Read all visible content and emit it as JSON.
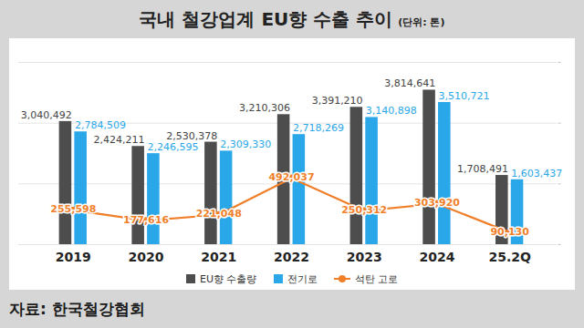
{
  "chart_data": {
    "type": "bar",
    "title": "국내 철강업계 EU향 수출 추이",
    "subtitle": "(단위: 톤)",
    "source": "자료: 한국철강협회",
    "categories": [
      "2019",
      "2020",
      "2021",
      "2022",
      "2023",
      "2024",
      "25.2Q"
    ],
    "series": [
      {
        "name": "EU향 수출량",
        "color": "#4d4d4d",
        "values": [
          3040492,
          2424211,
          2530378,
          3210306,
          3391210,
          3814641,
          1708491
        ],
        "value_labels": [
          "3,040,492",
          "2,424,211",
          "2,530,378",
          "3,210,306",
          "3,391,210",
          "3,814,641",
          "1,708,491"
        ]
      },
      {
        "name": "전기로",
        "color": "#2aa7e8",
        "values": [
          2784509,
          2246595,
          2309330,
          2718269,
          3140898,
          3510721,
          1603437
        ],
        "value_labels": [
          "2,784,509",
          "2,246,595",
          "2,309,330",
          "2,718,269",
          "3,140,898",
          "3,510,721",
          "1,603,437"
        ]
      },
      {
        "name": "석탄 고로",
        "type": "line",
        "axis": "y2",
        "color": "#f07f2a",
        "marker": "circle",
        "values": [
          255598,
          177616,
          221048,
          492037,
          250312,
          303920,
          90130
        ],
        "value_labels": [
          "255,598",
          "177,616",
          "221,048",
          "492,037",
          "250,312",
          "303,920",
          "90,130"
        ]
      }
    ],
    "ylim": [
      0,
      4500000
    ],
    "yticks": [
      0,
      1500000,
      3000000,
      4500000
    ],
    "y2lim": [
      0,
      1350000
    ],
    "y2ticks": [
      0,
      450000,
      900000,
      1350000
    ],
    "grid": true,
    "data_labels": true,
    "tick_labels": "x",
    "legend": "bottom"
  }
}
